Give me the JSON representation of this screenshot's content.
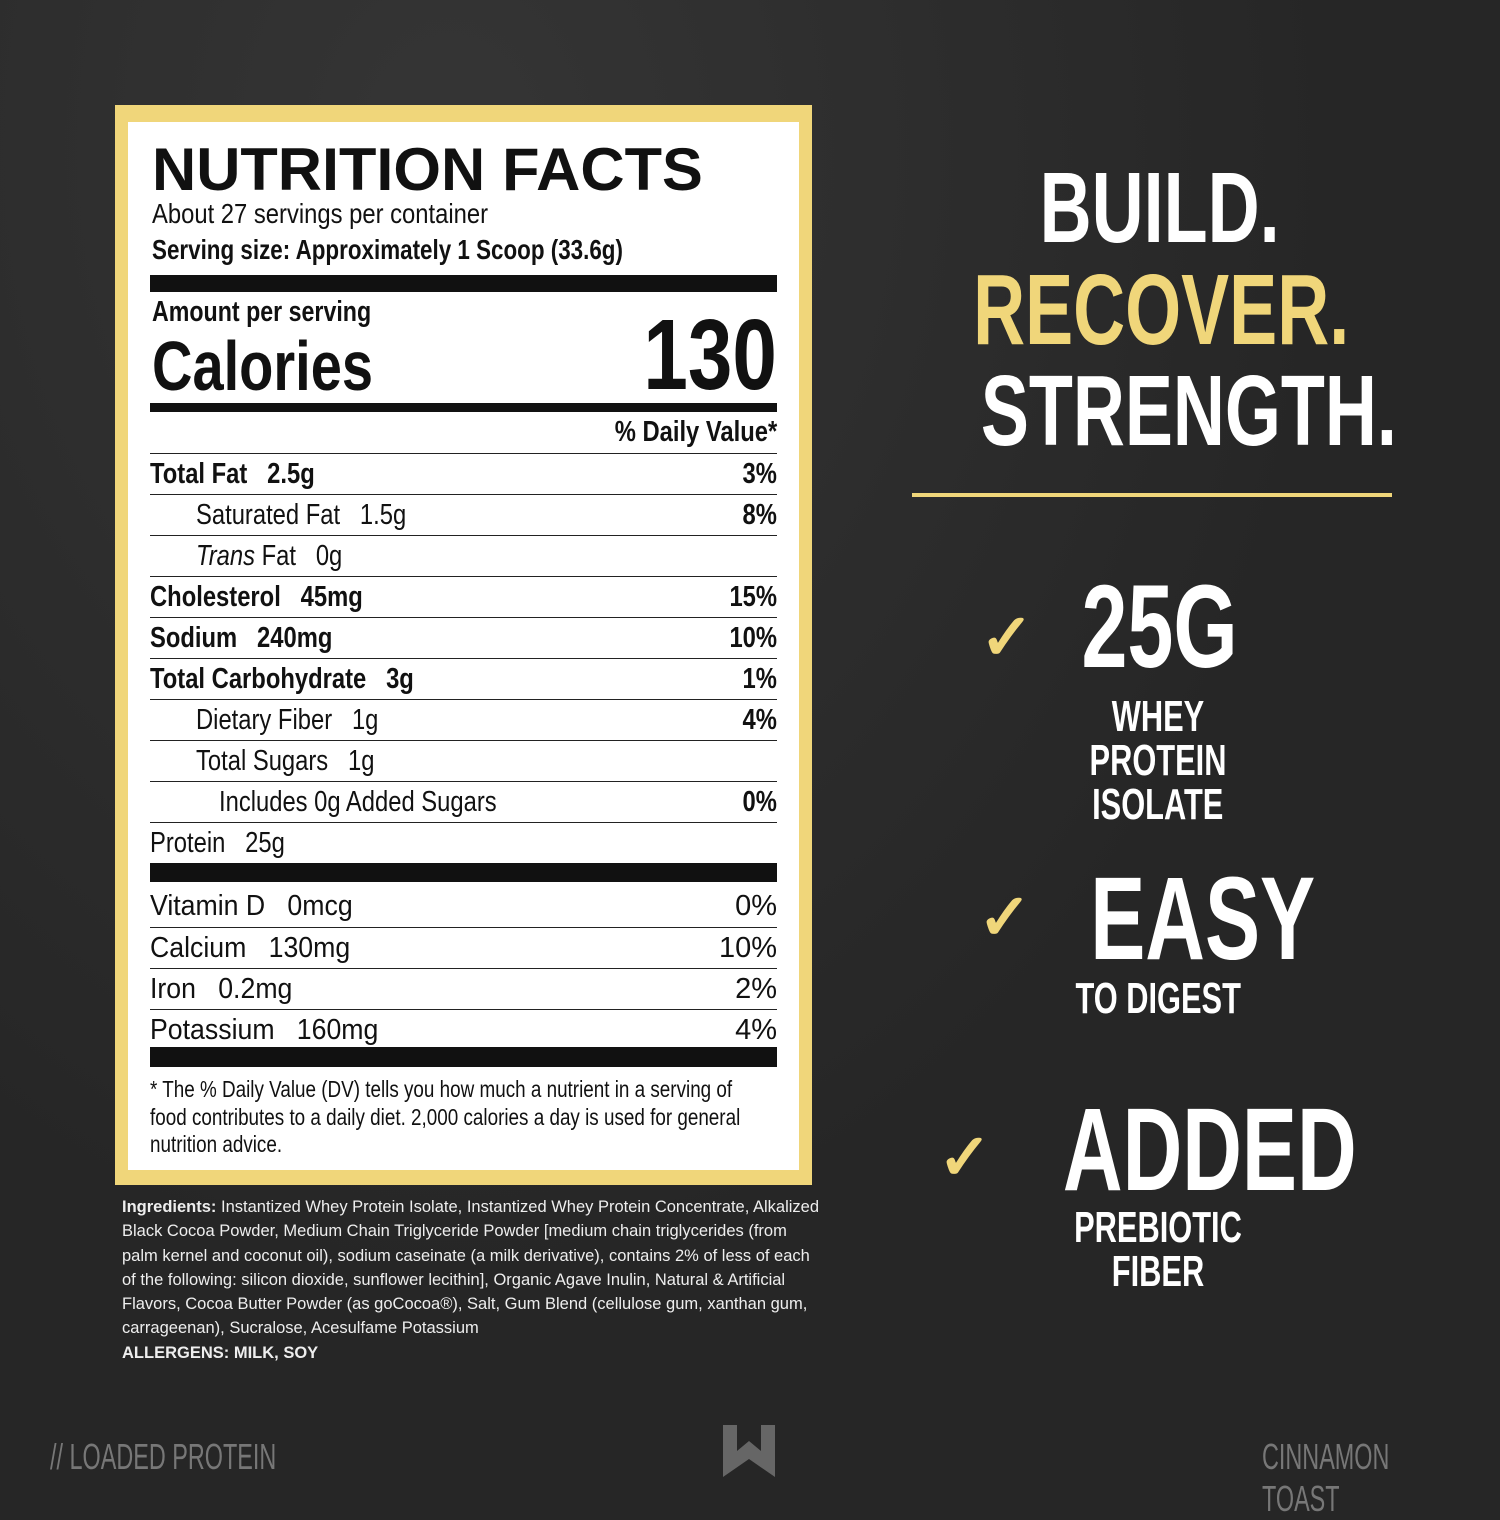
{
  "label": {
    "title": "NUTRITION FACTS",
    "servings": "About 27 servings per container",
    "serving_size": "Serving size: Approximately 1 Scoop (33.6g)",
    "amount_per_serving": "Amount per serving",
    "calories_label": "Calories",
    "calories_value": "130",
    "dv_header": "% Daily Value*",
    "rows": [
      {
        "name": "Total Fat",
        "amount": "2.5g",
        "dv": "3%"
      },
      {
        "name": "Saturated Fat",
        "amount": "1.5g",
        "dv": "8%"
      },
      {
        "name": "Trans",
        "name2": "Fat",
        "amount": "0g",
        "dv": ""
      },
      {
        "name": "Cholesterol",
        "amount": "45mg",
        "dv": "15%"
      },
      {
        "name": "Sodium",
        "amount": "240mg",
        "dv": "10%"
      },
      {
        "name": "Total Carbohydrate",
        "amount": "3g",
        "dv": "1%"
      },
      {
        "name": "Dietary Fiber",
        "amount": "1g",
        "dv": "4%"
      },
      {
        "name": "Total Sugars",
        "amount": "1g",
        "dv": ""
      },
      {
        "name": "Includes 0g Added Sugars",
        "amount": "",
        "dv": "0%"
      },
      {
        "name": "Protein",
        "amount": "25g",
        "dv": ""
      }
    ],
    "vitamins": [
      {
        "name": "Vitamin D",
        "amount": "0mcg",
        "dv": "0%"
      },
      {
        "name": "Calcium",
        "amount": "130mg",
        "dv": "10%"
      },
      {
        "name": "Iron",
        "amount": "0.2mg",
        "dv": "2%"
      },
      {
        "name": "Potassium",
        "amount": "160mg",
        "dv": "4%"
      }
    ],
    "footnote": "* The % Daily Value (DV) tells you how much a nutrient in a serving of food contributes to a daily diet. 2,000 calories a day is used for general nutrition advice."
  },
  "ingredients": {
    "label": "Ingredients:",
    "text": " Instantized Whey Protein Isolate, Instantized Whey Protein Concentrate, Alkalized Black Cocoa Powder, Medium Chain Triglyceride Powder [medium chain triglycerides (from palm kernel and coconut oil), sodium caseinate (a milk derivative), contains 2% of less of each of the following: silicon dioxide, sunflower lecithin], Organic Agave Inulin, Natural & Artificial Flavors, Cocoa Butter Powder (as goCocoa®), Salt, Gum Blend (cellulose gum, xanthan gum, carrageenan), Sucralose, Acesulfame Potassium",
    "allergens": "ALLERGENS: MILK, SOY"
  },
  "headline": [
    "BUILD.",
    "RECOVER.",
    "STRENGTH."
  ],
  "features": [
    {
      "big": "25G",
      "small1": "WHEY PROTEIN",
      "small2": "ISOLATE",
      "icon": "check-icon"
    },
    {
      "big": "EASY",
      "small1": "TO DIGEST",
      "icon": "check-icon"
    },
    {
      "big": "ADDED",
      "small1": "PREBIOTIC FIBER",
      "icon": "check-icon"
    }
  ],
  "footer": {
    "left": "// LOADED PROTEIN",
    "right": "CINNAMON TOAST"
  },
  "colors": {
    "background": "#262626",
    "accent": "#f0d67a",
    "text": "#ffffff"
  }
}
